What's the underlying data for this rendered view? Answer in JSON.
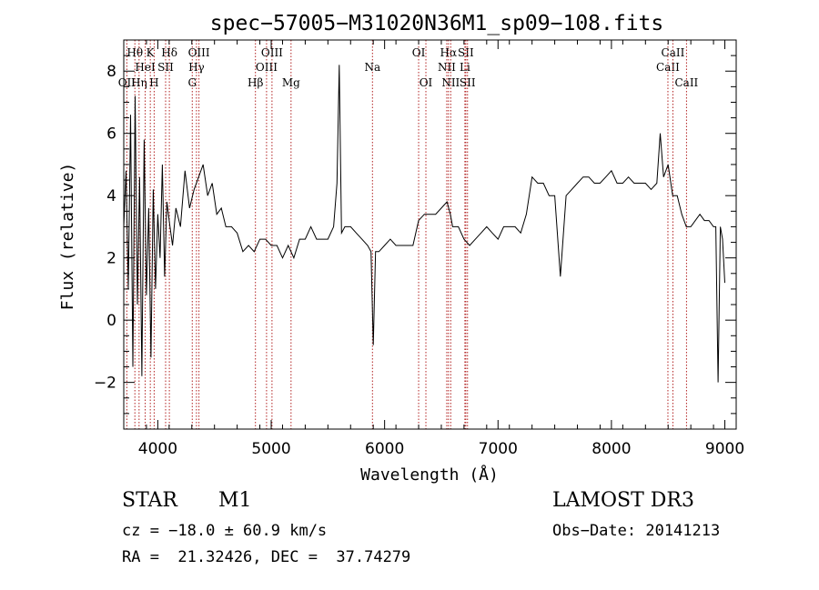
{
  "chart_data": {
    "type": "line",
    "title": "spec−57005−M31020N36M1_sp09−108.fits",
    "xlabel": "Wavelength (Å)",
    "ylabel": "Flux (relative)",
    "xlim": [
      3700,
      9100
    ],
    "ylim": [
      -3.5,
      9.0
    ],
    "xticks": [
      4000,
      5000,
      6000,
      7000,
      8000,
      9000
    ],
    "yticks": [
      -2,
      0,
      2,
      4,
      6,
      8
    ],
    "ytick_labels": [
      "−2",
      "0",
      "2",
      "4",
      "6",
      "8"
    ],
    "grid": false,
    "line_color": "#000000",
    "marker_color": "#b22222",
    "series": [
      {
        "name": "flux",
        "x": [
          3700,
          3720,
          3740,
          3760,
          3780,
          3800,
          3820,
          3840,
          3860,
          3880,
          3900,
          3920,
          3940,
          3960,
          3980,
          4000,
          4020,
          4040,
          4060,
          4080,
          4100,
          4130,
          4160,
          4200,
          4240,
          4280,
          4320,
          4360,
          4400,
          4440,
          4480,
          4520,
          4560,
          4600,
          4650,
          4700,
          4750,
          4800,
          4850,
          4900,
          4950,
          5000,
          5050,
          5100,
          5150,
          5200,
          5250,
          5300,
          5350,
          5400,
          5450,
          5500,
          5550,
          5580,
          5600,
          5620,
          5650,
          5700,
          5750,
          5800,
          5850,
          5880,
          5900,
          5920,
          5950,
          6000,
          6050,
          6100,
          6150,
          6200,
          6250,
          6300,
          6350,
          6400,
          6450,
          6500,
          6550,
          6580,
          6600,
          6650,
          6700,
          6750,
          6800,
          6850,
          6900,
          6950,
          7000,
          7050,
          7100,
          7150,
          7200,
          7250,
          7300,
          7350,
          7400,
          7450,
          7500,
          7550,
          7600,
          7650,
          7700,
          7750,
          7800,
          7850,
          7900,
          7950,
          8000,
          8050,
          8100,
          8150,
          8200,
          8250,
          8300,
          8350,
          8400,
          8430,
          8460,
          8500,
          8540,
          8580,
          8620,
          8660,
          8700,
          8740,
          8780,
          8820,
          8860,
          8900,
          8920,
          8940,
          8960,
          8980,
          9000
        ],
        "values": [
          3.0,
          4.8,
          1.0,
          6.6,
          -1.5,
          7.2,
          0.5,
          4.6,
          -1.8,
          5.8,
          0.8,
          3.6,
          -1.2,
          4.2,
          1.0,
          3.4,
          2.0,
          5.0,
          1.4,
          3.8,
          3.2,
          2.4,
          3.6,
          3.0,
          4.8,
          3.6,
          4.2,
          4.6,
          5.0,
          4.0,
          4.4,
          3.4,
          3.6,
          3.0,
          3.0,
          2.8,
          2.2,
          2.4,
          2.2,
          2.6,
          2.6,
          2.4,
          2.4,
          2.0,
          2.4,
          2.0,
          2.6,
          2.6,
          3.0,
          2.6,
          2.6,
          2.6,
          3.0,
          4.4,
          8.2,
          2.8,
          3.0,
          3.0,
          2.8,
          2.6,
          2.4,
          2.2,
          -0.8,
          2.2,
          2.2,
          2.4,
          2.6,
          2.4,
          2.4,
          2.4,
          2.4,
          3.2,
          3.4,
          3.4,
          3.4,
          3.6,
          3.8,
          3.4,
          3.0,
          3.0,
          2.6,
          2.4,
          2.6,
          2.8,
          3.0,
          2.8,
          2.6,
          3.0,
          3.0,
          3.0,
          2.8,
          3.4,
          4.6,
          4.4,
          4.4,
          4.0,
          4.0,
          1.4,
          4.0,
          4.2,
          4.4,
          4.6,
          4.6,
          4.4,
          4.4,
          4.6,
          4.8,
          4.4,
          4.4,
          4.6,
          4.4,
          4.4,
          4.4,
          4.2,
          4.4,
          6.0,
          4.6,
          5.0,
          4.0,
          4.0,
          3.4,
          3.0,
          3.0,
          3.2,
          3.4,
          3.2,
          3.2,
          3.0,
          3.0,
          -2.0,
          3.0,
          2.6,
          1.2
        ]
      }
    ],
    "line_markers": [
      {
        "name": "Hθ",
        "x": 3798,
        "row": 1
      },
      {
        "name": "OII",
        "x": 3727,
        "row": 3
      },
      {
        "name": "Hη",
        "x": 3835,
        "row": 3
      },
      {
        "name": "K",
        "x": 3934,
        "row": 1
      },
      {
        "name": "H",
        "x": 3968,
        "row": 3
      },
      {
        "name": "HeI",
        "x": 3889,
        "row": 2
      },
      {
        "name": "SII",
        "x": 4069,
        "row": 2
      },
      {
        "name": "Hδ",
        "x": 4102,
        "row": 1
      },
      {
        "name": "G",
        "x": 4304,
        "row": 3
      },
      {
        "name": "Hγ",
        "x": 4341,
        "row": 2
      },
      {
        "name": "OIII",
        "x": 4363,
        "row": 1
      },
      {
        "name": "Hβ",
        "x": 4861,
        "row": 3
      },
      {
        "name": "OIII",
        "x": 4959,
        "row": 2
      },
      {
        "name": "OIII",
        "x": 5007,
        "row": 1
      },
      {
        "name": "Mg",
        "x": 5175,
        "row": 3
      },
      {
        "name": "Na",
        "x": 5893,
        "row": 2
      },
      {
        "name": "OI",
        "x": 6300,
        "row": 1
      },
      {
        "name": "OI",
        "x": 6364,
        "row": 3
      },
      {
        "name": "NII",
        "x": 6548,
        "row": 2
      },
      {
        "name": "Hα",
        "x": 6563,
        "row": 1
      },
      {
        "name": "NII",
        "x": 6583,
        "row": 3
      },
      {
        "name": "Li",
        "x": 6708,
        "row": 2
      },
      {
        "name": "SII",
        "x": 6716,
        "row": 1
      },
      {
        "name": "SII",
        "x": 6731,
        "row": 3
      },
      {
        "name": "CaII",
        "x": 8498,
        "row": 2
      },
      {
        "name": "CaII",
        "x": 8542,
        "row": 1
      },
      {
        "name": "CaII",
        "x": 8662,
        "row": 3
      }
    ]
  },
  "info": {
    "class": "STAR",
    "subclass": "M1",
    "survey": "LAMOST DR3",
    "cz": "cz = −18.0 ± 60.9 km/s",
    "obs_date": "Obs−Date: 20141213",
    "coords": "RA =  21.32426, DEC =  37.74279"
  }
}
